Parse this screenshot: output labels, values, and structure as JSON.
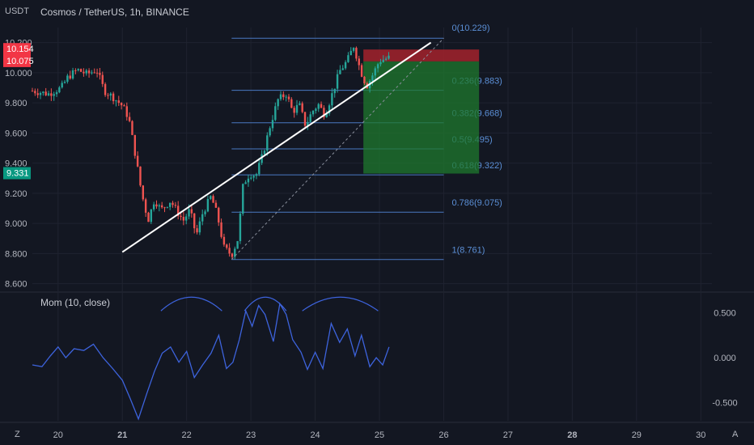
{
  "app": {
    "currency_label": "USDT",
    "zoom_label": "Z",
    "auto_label": "A"
  },
  "chart_data": [
    {
      "type": "candlestick",
      "title": "Cosmos / TetherUS, 1h, BINANCE",
      "ylim": [
        8.55,
        10.3
      ],
      "xlim": [
        19.6,
        30.5
      ],
      "y_ticks": [
        "8.600",
        "8.800",
        "9.000",
        "9.200",
        "9.400",
        "9.600",
        "9.800",
        "10.000",
        "10.200"
      ],
      "x_ticks": [
        "20",
        "21",
        "22",
        "23",
        "24",
        "25",
        "26",
        "27",
        "28",
        "29",
        "30"
      ],
      "price_badges": [
        {
          "label": "10.154",
          "value": 10.154,
          "color": "#f23645"
        },
        {
          "label": "10.075",
          "value": 10.075,
          "color": "#f23645"
        },
        {
          "label": "9.331",
          "value": 9.331,
          "color": "#089981"
        }
      ],
      "price_path": [
        {
          "x": 19.6,
          "y": 9.88
        },
        {
          "x": 19.85,
          "y": 9.86
        },
        {
          "x": 20.05,
          "y": 9.9
        },
        {
          "x": 20.15,
          "y": 9.97
        },
        {
          "x": 20.3,
          "y": 10.02
        },
        {
          "x": 20.45,
          "y": 9.99
        },
        {
          "x": 20.6,
          "y": 10.02
        },
        {
          "x": 20.72,
          "y": 9.88
        },
        {
          "x": 20.85,
          "y": 9.84
        },
        {
          "x": 21.0,
          "y": 9.78
        },
        {
          "x": 21.1,
          "y": 9.7
        },
        {
          "x": 21.2,
          "y": 9.46
        },
        {
          "x": 21.3,
          "y": 9.2
        },
        {
          "x": 21.4,
          "y": 9.02
        },
        {
          "x": 21.5,
          "y": 9.16
        },
        {
          "x": 21.6,
          "y": 9.09
        },
        {
          "x": 21.75,
          "y": 9.15
        },
        {
          "x": 21.85,
          "y": 9.08
        },
        {
          "x": 21.95,
          "y": 9.02
        },
        {
          "x": 22.05,
          "y": 9.09
        },
        {
          "x": 22.15,
          "y": 8.92
        },
        {
          "x": 22.25,
          "y": 9.07
        },
        {
          "x": 22.38,
          "y": 9.18
        },
        {
          "x": 22.48,
          "y": 9.05
        },
        {
          "x": 22.58,
          "y": 8.84
        },
        {
          "x": 22.7,
          "y": 8.79
        },
        {
          "x": 22.8,
          "y": 8.9
        },
        {
          "x": 22.88,
          "y": 9.26
        },
        {
          "x": 22.98,
          "y": 9.33
        },
        {
          "x": 23.08,
          "y": 9.32
        },
        {
          "x": 23.18,
          "y": 9.45
        },
        {
          "x": 23.3,
          "y": 9.65
        },
        {
          "x": 23.42,
          "y": 9.82
        },
        {
          "x": 23.55,
          "y": 9.86
        },
        {
          "x": 23.65,
          "y": 9.74
        },
        {
          "x": 23.75,
          "y": 9.79
        },
        {
          "x": 23.85,
          "y": 9.65
        },
        {
          "x": 23.95,
          "y": 9.74
        },
        {
          "x": 24.05,
          "y": 9.79
        },
        {
          "x": 24.15,
          "y": 9.72
        },
        {
          "x": 24.25,
          "y": 9.84
        },
        {
          "x": 24.38,
          "y": 10.01
        },
        {
          "x": 24.5,
          "y": 10.08
        },
        {
          "x": 24.6,
          "y": 10.18
        },
        {
          "x": 24.7,
          "y": 10.02
        },
        {
          "x": 24.8,
          "y": 9.91
        },
        {
          "x": 24.9,
          "y": 9.99
        },
        {
          "x": 25.0,
          "y": 10.08
        },
        {
          "x": 25.15,
          "y": 10.1
        }
      ],
      "fib_levels": [
        {
          "label": "0(10.229)",
          "value": 10.229
        },
        {
          "label": "0.236(9.883)",
          "value": 9.883
        },
        {
          "label": "0.382(9.668)",
          "value": 9.668
        },
        {
          "label": "0.5(9.495)",
          "value": 9.495
        },
        {
          "label": "0.618(9.322)",
          "value": 9.322
        },
        {
          "label": "0.786(9.075)",
          "value": 9.075
        },
        {
          "label": "1(8.761)",
          "value": 8.761
        }
      ],
      "fib_x_range": [
        22.7,
        26.0
      ],
      "trendline": {
        "from": [
          21.0,
          8.81
        ],
        "to": [
          25.8,
          10.2
        ],
        "color": "#ffffff"
      },
      "dashed_line": {
        "from": [
          22.7,
          8.761
        ],
        "to": [
          26.0,
          10.229
        ]
      },
      "position_box": {
        "x_from": 24.75,
        "x_to": 26.55,
        "entry": 10.075,
        "stop": 10.154,
        "target": 9.331,
        "profit_color": "#1f7a2e",
        "loss_color": "#a3222c"
      }
    },
    {
      "type": "line",
      "title": "Mom (10, close)",
      "ylim": [
        -0.7,
        0.72
      ],
      "y_ticks": [
        "0.500",
        "0.000",
        "-0.500"
      ],
      "series": [
        {
          "color": "#3d63dd",
          "x": [
            19.6,
            19.75,
            19.88,
            20.0,
            20.12,
            20.25,
            20.4,
            20.55,
            20.7,
            20.85,
            21.0,
            21.12,
            21.25,
            21.38,
            21.5,
            21.62,
            21.75,
            21.88,
            22.0,
            22.12,
            22.25,
            22.38,
            22.5,
            22.62,
            22.72,
            22.82,
            22.92,
            23.02,
            23.12,
            23.22,
            23.35,
            23.45,
            23.55,
            23.65,
            23.78,
            23.88,
            24.0,
            24.12,
            24.25,
            24.38,
            24.5,
            24.62,
            24.72,
            24.85,
            24.95,
            25.05,
            25.15
          ],
          "y": [
            -0.08,
            -0.1,
            0.02,
            0.12,
            0.0,
            0.1,
            0.08,
            0.15,
            0.0,
            -0.12,
            -0.25,
            -0.45,
            -0.68,
            -0.4,
            -0.15,
            0.05,
            0.12,
            -0.05,
            0.07,
            -0.22,
            -0.08,
            0.05,
            0.25,
            -0.12,
            -0.05,
            0.2,
            0.52,
            0.35,
            0.58,
            0.48,
            0.18,
            0.6,
            0.48,
            0.2,
            0.06,
            -0.13,
            0.06,
            -0.12,
            0.38,
            0.17,
            0.32,
            0.02,
            0.25,
            -0.1,
            0.0,
            -0.08,
            0.12
          ]
        }
      ],
      "annotation_arcs": [
        {
          "from": 21.6,
          "to": 22.55
        },
        {
          "from": 22.9,
          "to": 23.55
        },
        {
          "from": 23.8,
          "to": 24.98
        }
      ]
    }
  ]
}
